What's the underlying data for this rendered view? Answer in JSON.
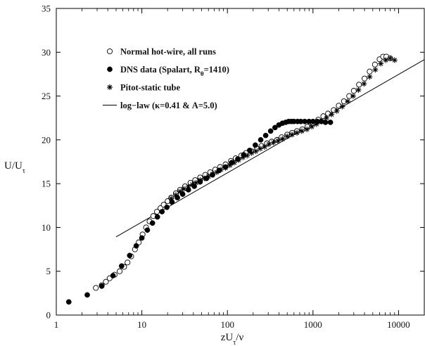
{
  "chart_data": {
    "type": "scatter",
    "title": "",
    "xlabel": "zUτ/ν",
    "ylabel": "U/Uτ",
    "x_scale": "log",
    "xlim": [
      1,
      20000
    ],
    "ylim": [
      0,
      35
    ],
    "x_ticks": [
      1,
      10,
      100,
      1000,
      10000
    ],
    "x_tick_labels": [
      "1",
      "10",
      "100",
      "1000",
      "10000"
    ],
    "y_ticks": [
      0,
      5,
      10,
      15,
      20,
      25,
      30,
      35
    ],
    "y_tick_labels": [
      "0",
      "5",
      "10",
      "15",
      "20",
      "25",
      "30",
      "35"
    ],
    "grid": false,
    "legend_position": "top-left",
    "series": [
      {
        "name": "Normal hot-wire, all runs",
        "marker": "open-circle",
        "color": "#000000",
        "x": [
          2.9,
          3.4,
          3.8,
          4.2,
          4.8,
          5.5,
          6.2,
          6.8,
          7.5,
          8.3,
          9.2,
          10.2,
          11.2,
          12.3,
          13.6,
          15,
          16.5,
          18,
          20,
          22,
          25,
          28,
          32,
          37,
          42,
          48,
          55,
          63,
          72,
          82,
          95,
          110,
          125,
          145,
          165,
          190,
          220,
          250,
          290,
          330,
          380,
          430,
          500,
          570,
          650,
          750,
          860,
          1000,
          1150,
          1320,
          1500,
          1750,
          2000,
          2300,
          2650,
          3000,
          3450,
          4000,
          4600,
          5300,
          6000,
          6600,
          7200,
          8000
        ],
        "y": [
          3.1,
          3.4,
          3.8,
          4.2,
          4.6,
          5.0,
          5.5,
          6.0,
          6.7,
          7.5,
          8.3,
          9.2,
          10.0,
          10.7,
          11.3,
          11.8,
          12.2,
          12.6,
          13.0,
          13.4,
          13.9,
          14.3,
          14.7,
          15.1,
          15.4,
          15.7,
          16.0,
          16.3,
          16.6,
          16.9,
          17.2,
          17.6,
          17.9,
          18.2,
          18.5,
          18.7,
          19.0,
          19.3,
          19.6,
          19.8,
          20.0,
          20.3,
          20.6,
          20.8,
          21.0,
          21.2,
          21.5,
          21.9,
          22.3,
          22.7,
          23.0,
          23.4,
          23.9,
          24.4,
          25.0,
          25.6,
          26.3,
          27.0,
          27.8,
          28.6,
          29.2,
          29.5,
          29.5,
          29.3
        ]
      },
      {
        "name": "DNS data (Spalart, Rθ=1410)",
        "marker": "filled-circle",
        "color": "#000000",
        "x": [
          1.4,
          2.3,
          3.4,
          4.6,
          5.8,
          7.2,
          8.6,
          10,
          11.6,
          13.3,
          15.2,
          17.2,
          19.6,
          22.5,
          26,
          30,
          35,
          41,
          48,
          57,
          67,
          80,
          95,
          112,
          132,
          155,
          182,
          212,
          245,
          280,
          320,
          360,
          400,
          440,
          480,
          520,
          560,
          600,
          660,
          720,
          800,
          900,
          1000,
          1120,
          1250,
          1400,
          1600
        ],
        "y": [
          1.5,
          2.3,
          3.3,
          4.5,
          5.6,
          6.8,
          7.9,
          8.8,
          9.7,
          10.5,
          11.2,
          11.8,
          12.3,
          12.9,
          13.4,
          13.8,
          14.3,
          14.7,
          15.2,
          15.6,
          16.0,
          16.5,
          16.9,
          17.4,
          17.8,
          18.3,
          18.8,
          19.4,
          20.0,
          20.5,
          21.0,
          21.4,
          21.7,
          21.9,
          22.0,
          22.1,
          22.1,
          22.1,
          22.1,
          22.1,
          22.1,
          22.1,
          22.1,
          22.1,
          22.1,
          22.0,
          22.0
        ]
      },
      {
        "name": "Pitot-static tube",
        "marker": "asterisk",
        "color": "#000000",
        "x": [
          22,
          25,
          28,
          31,
          35,
          39,
          43,
          48,
          54,
          60,
          67,
          75,
          84,
          95,
          107,
          120,
          135,
          152,
          170,
          192,
          215,
          242,
          272,
          305,
          345,
          390,
          440,
          500,
          570,
          650,
          740,
          850,
          970,
          1100,
          1260,
          1440,
          1650,
          1900,
          2200,
          2550,
          2950,
          3400,
          3950,
          4600,
          5350,
          6200,
          7100,
          8000,
          9000
        ],
        "y": [
          13.3,
          13.7,
          14.1,
          14.4,
          14.7,
          14.9,
          15.1,
          15.4,
          15.6,
          15.8,
          16.1,
          16.3,
          16.6,
          16.8,
          17.1,
          17.4,
          17.7,
          18.0,
          18.2,
          18.5,
          18.7,
          19.0,
          19.2,
          19.5,
          19.7,
          19.9,
          20.1,
          20.4,
          20.6,
          20.8,
          21.0,
          21.2,
          21.5,
          21.8,
          22.1,
          22.5,
          22.9,
          23.3,
          23.8,
          24.4,
          25.0,
          25.7,
          26.4,
          27.2,
          28.0,
          28.7,
          29.1,
          29.3,
          29.1
        ]
      },
      {
        "name": "log−law (κ=0.41 & A=5.0)",
        "marker": "line",
        "color": "#000000",
        "kappa": 0.41,
        "A": 5.0,
        "x_range": [
          5,
          20000
        ]
      }
    ]
  }
}
